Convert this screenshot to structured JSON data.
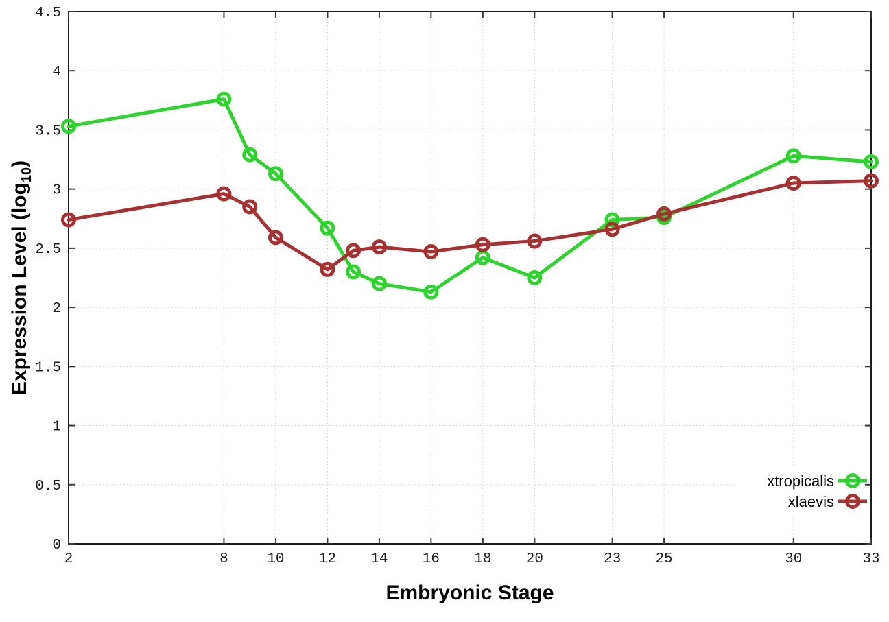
{
  "chart_data": {
    "type": "line",
    "x": [
      2,
      8,
      9,
      10,
      12,
      13,
      14,
      16,
      18,
      20,
      23,
      25,
      30,
      33
    ],
    "series": [
      {
        "name": "xtropicalis",
        "color": "#2BD52B",
        "values": [
          3.53,
          3.76,
          3.29,
          3.13,
          2.67,
          2.3,
          2.2,
          2.13,
          2.42,
          2.25,
          2.74,
          2.76,
          3.28,
          3.23
        ]
      },
      {
        "name": "xlaevis",
        "color": "#A93030",
        "values": [
          2.74,
          2.96,
          2.85,
          2.59,
          2.32,
          2.48,
          2.51,
          2.47,
          2.53,
          2.56,
          2.66,
          2.79,
          3.05,
          3.07
        ]
      }
    ],
    "title": "",
    "xlabel": "Embryonic Stage",
    "ylabel": "Expression Level (log10)",
    "ylabel_parts": {
      "main": "Expression Level (log",
      "sub": "10",
      "close": ")"
    },
    "xlim": [
      2,
      33
    ],
    "ylim": [
      0,
      4.5
    ],
    "xticks": [
      2,
      8,
      10,
      12,
      14,
      16,
      18,
      20,
      23,
      25,
      30,
      33
    ],
    "yticks": [
      0,
      0.5,
      1,
      1.5,
      2,
      2.5,
      3,
      3.5,
      4,
      4.5
    ],
    "ytick_labels": [
      "0",
      "0.5",
      "1",
      "1.5",
      "2",
      "2.5",
      "3",
      "3.5",
      "4",
      "4.5"
    ],
    "grid": true,
    "legend": {
      "position": "inside-bottom-right",
      "entries": [
        "xtropicalis",
        "xlaevis"
      ]
    },
    "colors": {
      "background": "#ffffff",
      "grid": "#c9c9c9",
      "frame": "#1c1c1c",
      "tick": "#3a3a3a",
      "text": "#000000"
    }
  }
}
